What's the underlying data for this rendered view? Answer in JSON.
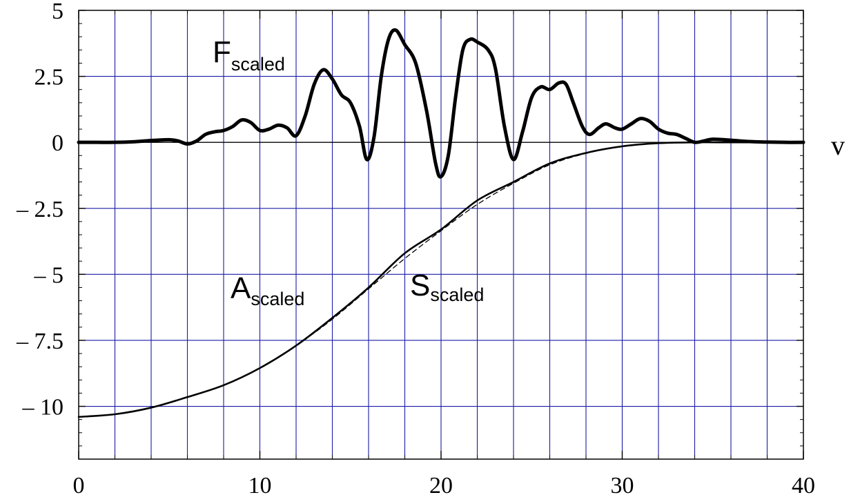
{
  "chart_data": {
    "type": "line",
    "xlim": [
      0,
      40
    ],
    "ylim": [
      -12,
      5
    ],
    "x_ticks": [
      "0",
      "10",
      "20",
      "30",
      "40"
    ],
    "x_tick_values": [
      0,
      10,
      20,
      30,
      40
    ],
    "y_ticks": [
      "5",
      "2.5",
      "0",
      "– 2.5",
      "– 5",
      "– 7.5",
      "– 10"
    ],
    "y_tick_values": [
      5,
      2.5,
      0,
      -2.5,
      -5,
      -7.5,
      -10
    ],
    "x_grid_step": 2,
    "y_grid_step": 2.5,
    "grid": true,
    "grid_color": "#1a1aa6",
    "xlabel": "v",
    "ylabel": "",
    "title": "",
    "series": [
      {
        "label_main": "F",
        "label_sub": "scaled",
        "color": "#000000",
        "style": "thick",
        "points": [
          [
            0,
            0
          ],
          [
            1,
            0
          ],
          [
            2,
            0
          ],
          [
            3,
            0.02
          ],
          [
            4,
            0.07
          ],
          [
            5,
            0.1
          ],
          [
            5.5,
            0.05
          ],
          [
            6,
            -0.06
          ],
          [
            6.5,
            0.05
          ],
          [
            7,
            0.3
          ],
          [
            7.5,
            0.4
          ],
          [
            8,
            0.45
          ],
          [
            8.5,
            0.6
          ],
          [
            9,
            0.85
          ],
          [
            9.5,
            0.75
          ],
          [
            10,
            0.45
          ],
          [
            10.5,
            0.5
          ],
          [
            11,
            0.65
          ],
          [
            11.5,
            0.55
          ],
          [
            12,
            0.25
          ],
          [
            12.5,
            1.0
          ],
          [
            13,
            2.2
          ],
          [
            13.5,
            2.75
          ],
          [
            14,
            2.4
          ],
          [
            14.5,
            1.8
          ],
          [
            15,
            1.5
          ],
          [
            15.5,
            0.6
          ],
          [
            15.9,
            -0.65
          ],
          [
            16.3,
            0.2
          ],
          [
            16.7,
            2.5
          ],
          [
            17.1,
            3.9
          ],
          [
            17.5,
            4.25
          ],
          [
            18,
            3.7
          ],
          [
            18.6,
            3.0
          ],
          [
            19.2,
            1.2
          ],
          [
            19.7,
            -0.8
          ],
          [
            20,
            -1.3
          ],
          [
            20.4,
            -0.5
          ],
          [
            20.8,
            1.7
          ],
          [
            21.2,
            3.5
          ],
          [
            21.6,
            3.9
          ],
          [
            22,
            3.8
          ],
          [
            22.6,
            3.5
          ],
          [
            23,
            2.8
          ],
          [
            23.5,
            0.6
          ],
          [
            24,
            -0.65
          ],
          [
            24.5,
            0.4
          ],
          [
            25,
            1.7
          ],
          [
            25.5,
            2.1
          ],
          [
            26,
            2.0
          ],
          [
            26.5,
            2.25
          ],
          [
            26.9,
            2.2
          ],
          [
            27.3,
            1.5
          ],
          [
            27.8,
            0.6
          ],
          [
            28.2,
            0.3
          ],
          [
            28.7,
            0.55
          ],
          [
            29.1,
            0.7
          ],
          [
            29.6,
            0.55
          ],
          [
            30,
            0.5
          ],
          [
            30.5,
            0.7
          ],
          [
            31,
            0.9
          ],
          [
            31.5,
            0.8
          ],
          [
            32,
            0.5
          ],
          [
            32.5,
            0.35
          ],
          [
            33,
            0.3
          ],
          [
            33.5,
            0.15
          ],
          [
            34,
            0
          ],
          [
            34.5,
            0.05
          ],
          [
            35,
            0.12
          ],
          [
            36,
            0.08
          ],
          [
            37,
            0.03
          ],
          [
            38,
            0.01
          ],
          [
            39,
            0
          ],
          [
            40,
            0
          ]
        ]
      },
      {
        "label_main": "A",
        "label_sub": "scaled",
        "color": "#000000",
        "style": "solid",
        "points": [
          [
            0,
            -10.4
          ],
          [
            2,
            -10.3
          ],
          [
            4,
            -10.05
          ],
          [
            6,
            -9.65
          ],
          [
            8,
            -9.2
          ],
          [
            10,
            -8.55
          ],
          [
            12,
            -7.7
          ],
          [
            14,
            -6.65
          ],
          [
            16,
            -5.5
          ],
          [
            18,
            -4.2
          ],
          [
            20,
            -3.3
          ],
          [
            22,
            -2.2
          ],
          [
            24,
            -1.5
          ],
          [
            26,
            -0.8
          ],
          [
            28,
            -0.4
          ],
          [
            30,
            -0.15
          ],
          [
            32,
            -0.03
          ],
          [
            34,
            0
          ],
          [
            36,
            0
          ],
          [
            38,
            0
          ],
          [
            40,
            0
          ]
        ]
      },
      {
        "label_main": "S",
        "label_sub": "scaled",
        "color": "#000000",
        "style": "dashed",
        "points": [
          [
            0,
            -10.4
          ],
          [
            2,
            -10.3
          ],
          [
            4,
            -10.05
          ],
          [
            6,
            -9.65
          ],
          [
            8,
            -9.2
          ],
          [
            10,
            -8.55
          ],
          [
            12,
            -7.7
          ],
          [
            14,
            -6.7
          ],
          [
            16,
            -5.55
          ],
          [
            18,
            -4.4
          ],
          [
            20,
            -3.35
          ],
          [
            22,
            -2.35
          ],
          [
            24,
            -1.55
          ],
          [
            26,
            -0.85
          ],
          [
            28,
            -0.42
          ],
          [
            30,
            -0.16
          ],
          [
            32,
            -0.03
          ],
          [
            34,
            0
          ],
          [
            36,
            0
          ],
          [
            38,
            0
          ],
          [
            40,
            0
          ]
        ]
      }
    ]
  }
}
